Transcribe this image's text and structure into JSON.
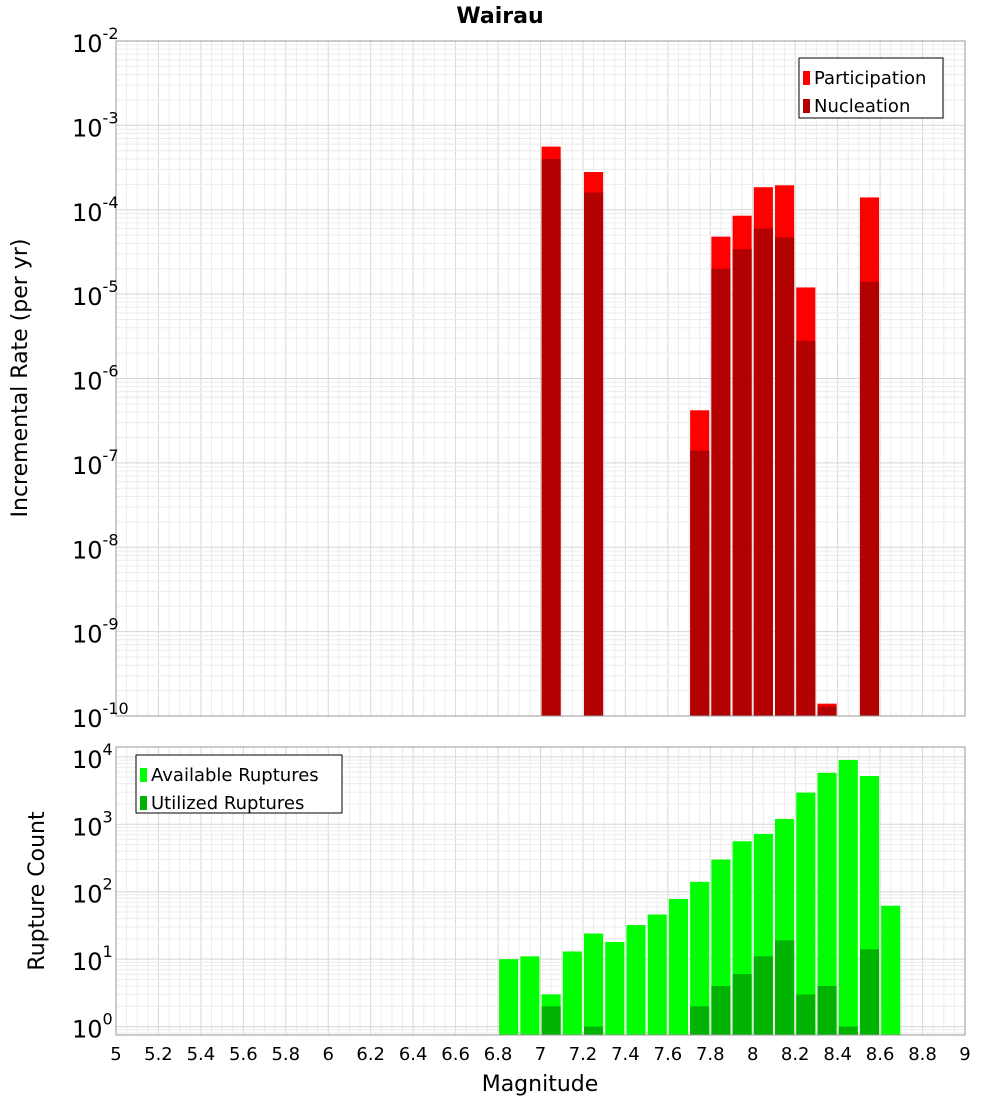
{
  "chart_data": [
    {
      "type": "bar",
      "title": "Wairau",
      "xlabel": "",
      "ylabel": "Incremental Rate (per yr)",
      "yscale": "log",
      "xlim": [
        5,
        9
      ],
      "ylim": [
        1e-10,
        0.01
      ],
      "y_tick_exponents": [
        -2,
        -3,
        -4,
        -5,
        -6,
        -7,
        -8,
        -9,
        -10
      ],
      "bar_width": 0.09,
      "legend": {
        "position": "top-right"
      },
      "grid": true,
      "series": [
        {
          "name": "Participation",
          "color": "#ff0000",
          "x": [
            7.05,
            7.25,
            7.75,
            7.85,
            7.95,
            8.05,
            8.15,
            8.25,
            8.35,
            8.55
          ],
          "values": [
            0.00056,
            0.00028,
            4.2e-07,
            4.8e-05,
            8.5e-05,
            0.000185,
            0.000195,
            1.2e-05,
            1.4e-10,
            0.00014
          ]
        },
        {
          "name": "Nucleation",
          "color": "#b30000",
          "x": [
            7.05,
            7.25,
            7.75,
            7.85,
            7.95,
            8.05,
            8.15,
            8.25,
            8.35,
            8.55
          ],
          "values": [
            0.0004,
            0.00016,
            1.4e-07,
            2e-05,
            3.4e-05,
            6e-05,
            4.7e-05,
            2.8e-06,
            1.3e-10,
            1.4e-05
          ]
        }
      ]
    },
    {
      "type": "bar",
      "title": "",
      "xlabel": "Magnitude",
      "ylabel": "Rupture Count",
      "yscale": "log",
      "xlim": [
        5,
        9
      ],
      "ylim": [
        0.75,
        14000
      ],
      "x_ticks": [
        "5",
        "5.2",
        "5.4",
        "5.6",
        "5.8",
        "6",
        "6.2",
        "6.4",
        "6.6",
        "6.8",
        "7",
        "7.2",
        "7.4",
        "7.6",
        "7.8",
        "8",
        "8.2",
        "8.4",
        "8.6",
        "8.8",
        "9"
      ],
      "y_tick_exponents": [
        0,
        1,
        2,
        3,
        4
      ],
      "bar_width": 0.09,
      "legend": {
        "position": "top-left"
      },
      "grid": true,
      "series": [
        {
          "name": "Available Ruptures",
          "color": "#00ff00",
          "x": [
            6.85,
            6.95,
            7.05,
            7.15,
            7.25,
            7.35,
            7.45,
            7.55,
            7.65,
            7.75,
            7.85,
            7.95,
            8.05,
            8.15,
            8.25,
            8.35,
            8.45,
            8.55,
            8.65
          ],
          "values": [
            10,
            11,
            3,
            13,
            24,
            18,
            32,
            46,
            78,
            140,
            300,
            560,
            720,
            1200,
            2950,
            5800,
            9000,
            5200,
            62
          ]
        },
        {
          "name": "Utilized Ruptures",
          "color": "#00b300",
          "x": [
            7.05,
            7.25,
            7.75,
            7.85,
            7.95,
            8.05,
            8.15,
            8.25,
            8.35,
            8.45,
            8.55
          ],
          "values": [
            2,
            1,
            2,
            4,
            6,
            11,
            19,
            3,
            4,
            1,
            14
          ]
        }
      ]
    }
  ]
}
